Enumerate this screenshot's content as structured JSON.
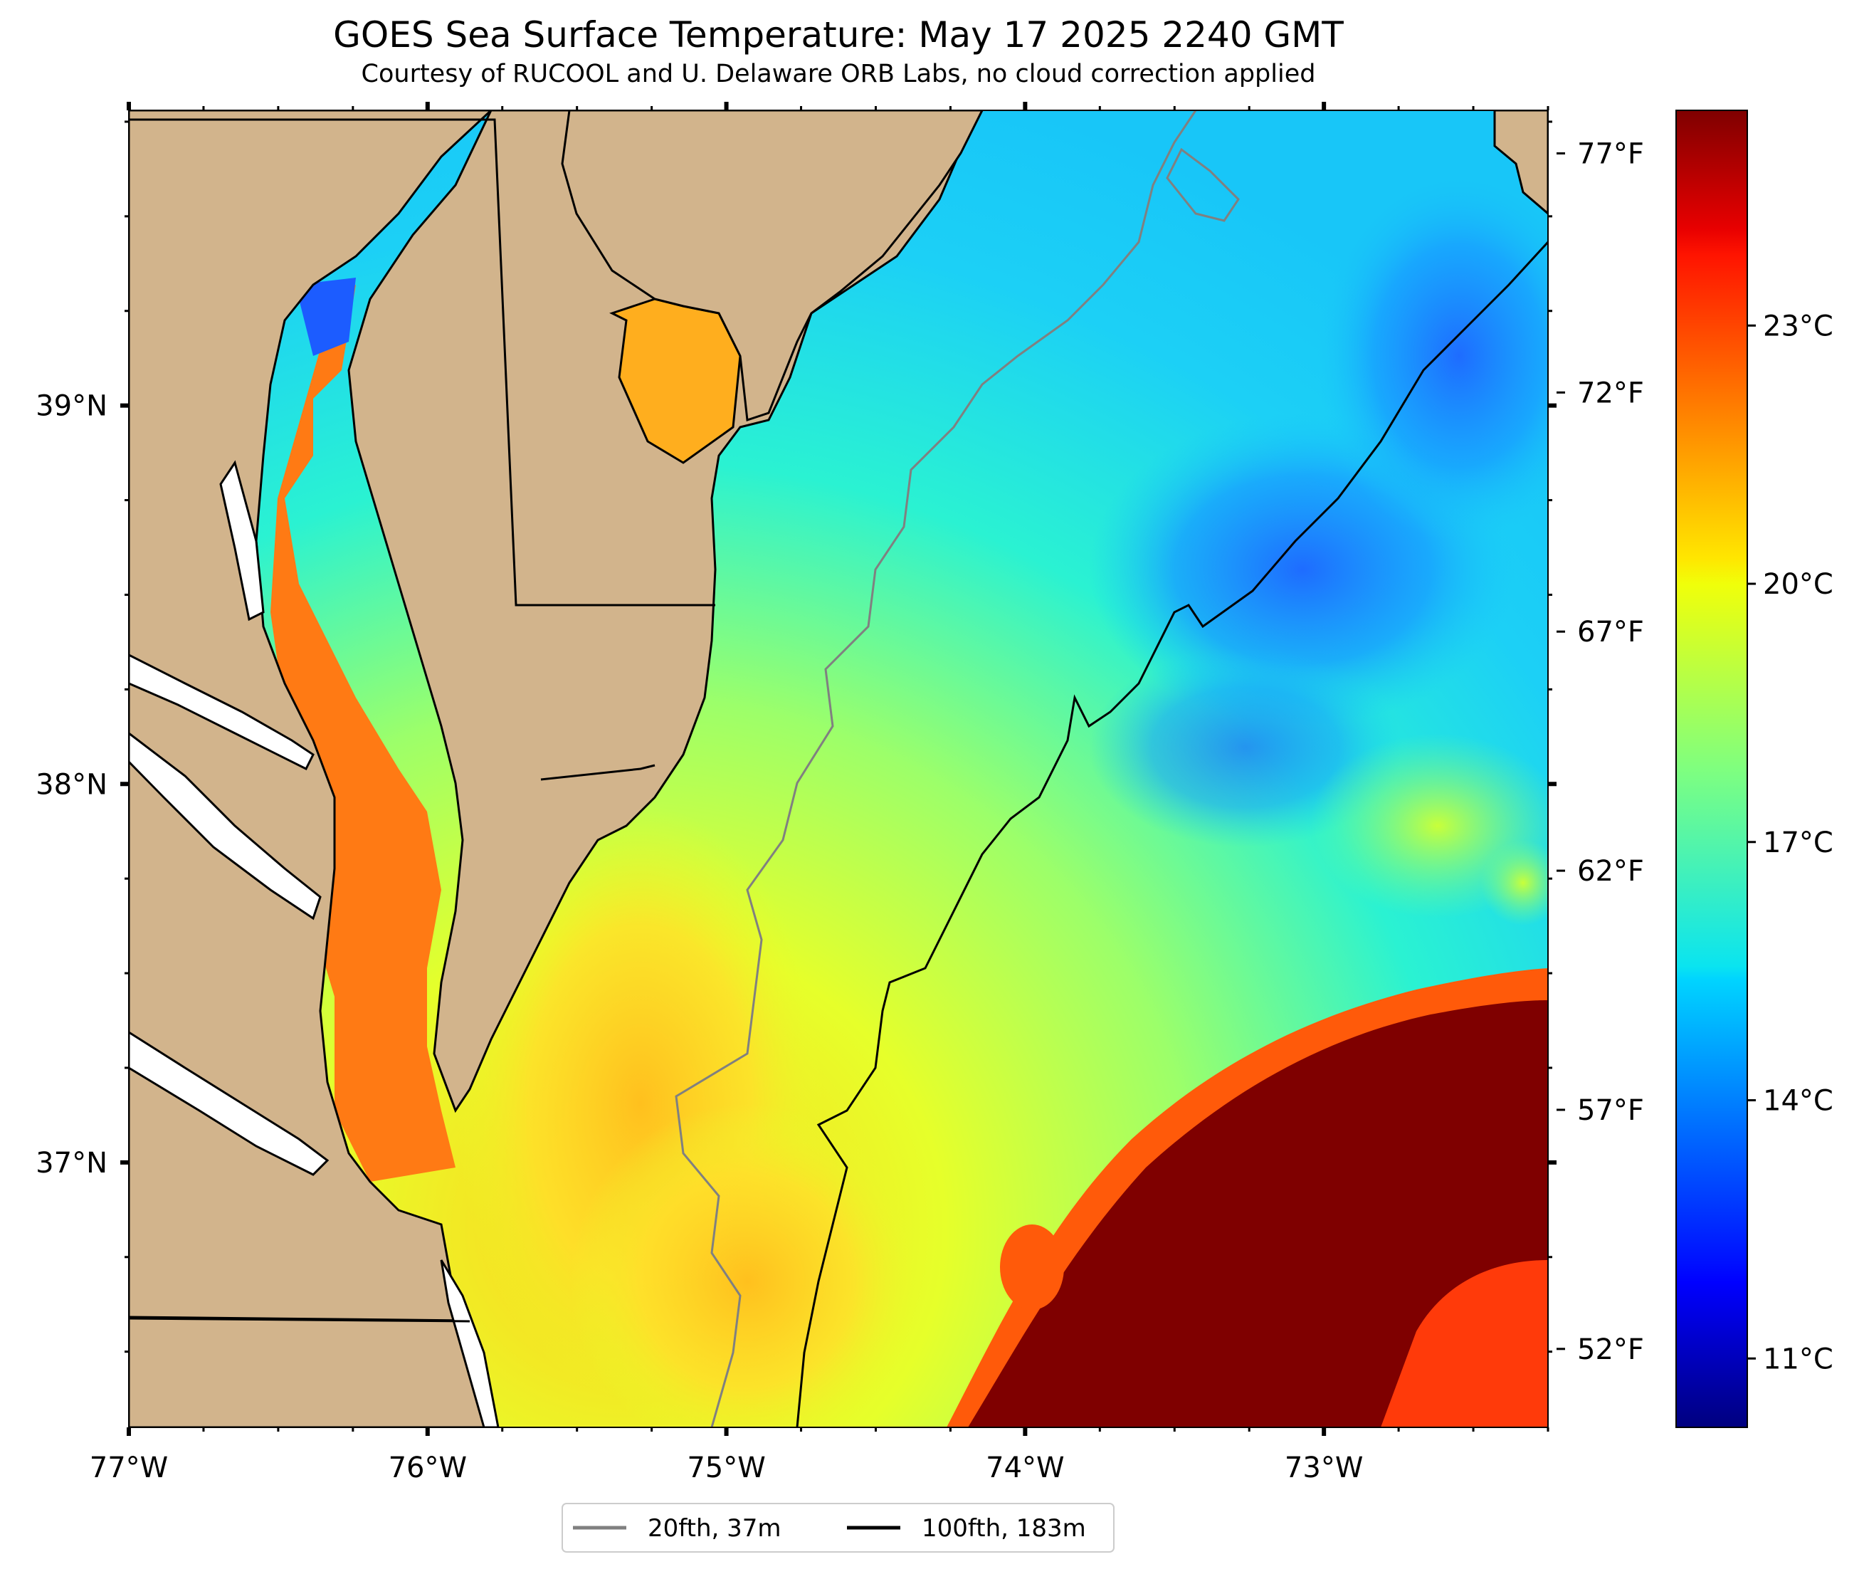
{
  "title": "GOES Sea Surface Temperature: May 17 2025 2240 GMT",
  "subtitle": "Courtesy of RUCOOL and U. Delaware ORB Labs, no cloud correction applied",
  "map": {
    "lon_range": [
      -77.0,
      -72.25
    ],
    "lat_range": [
      36.3,
      39.78
    ],
    "lon_ticks": [
      {
        "value": -77,
        "label": "77°W"
      },
      {
        "value": -76,
        "label": "76°W"
      },
      {
        "value": -75,
        "label": "75°W"
      },
      {
        "value": -74,
        "label": "74°W"
      },
      {
        "value": -73,
        "label": "73°W"
      }
    ],
    "lat_ticks": [
      {
        "value": 39,
        "label": "39°N"
      },
      {
        "value": 38,
        "label": "38°N"
      },
      {
        "value": 37,
        "label": "37°N"
      }
    ],
    "land_color": "#d2b48c",
    "water_colormap": "jet"
  },
  "colorbar": {
    "range_c": [
      10.2,
      25.5
    ],
    "celsius_ticks": [
      {
        "value": 11,
        "label": "11°C"
      },
      {
        "value": 14,
        "label": "14°C"
      },
      {
        "value": 17,
        "label": "17°C"
      },
      {
        "value": 20,
        "label": "20°C"
      },
      {
        "value": 23,
        "label": "23°C"
      }
    ],
    "fahrenheit_ticks": [
      {
        "value": 52,
        "label": "52°F"
      },
      {
        "value": 57,
        "label": "57°F"
      },
      {
        "value": 62,
        "label": "62°F"
      },
      {
        "value": 67,
        "label": "67°F"
      },
      {
        "value": 72,
        "label": "72°F"
      },
      {
        "value": 77,
        "label": "77°F"
      }
    ]
  },
  "legend": {
    "items": [
      {
        "label": "20fth, 37m",
        "color": "#808080"
      },
      {
        "label": "100fth, 183m",
        "color": "#000000"
      }
    ]
  }
}
